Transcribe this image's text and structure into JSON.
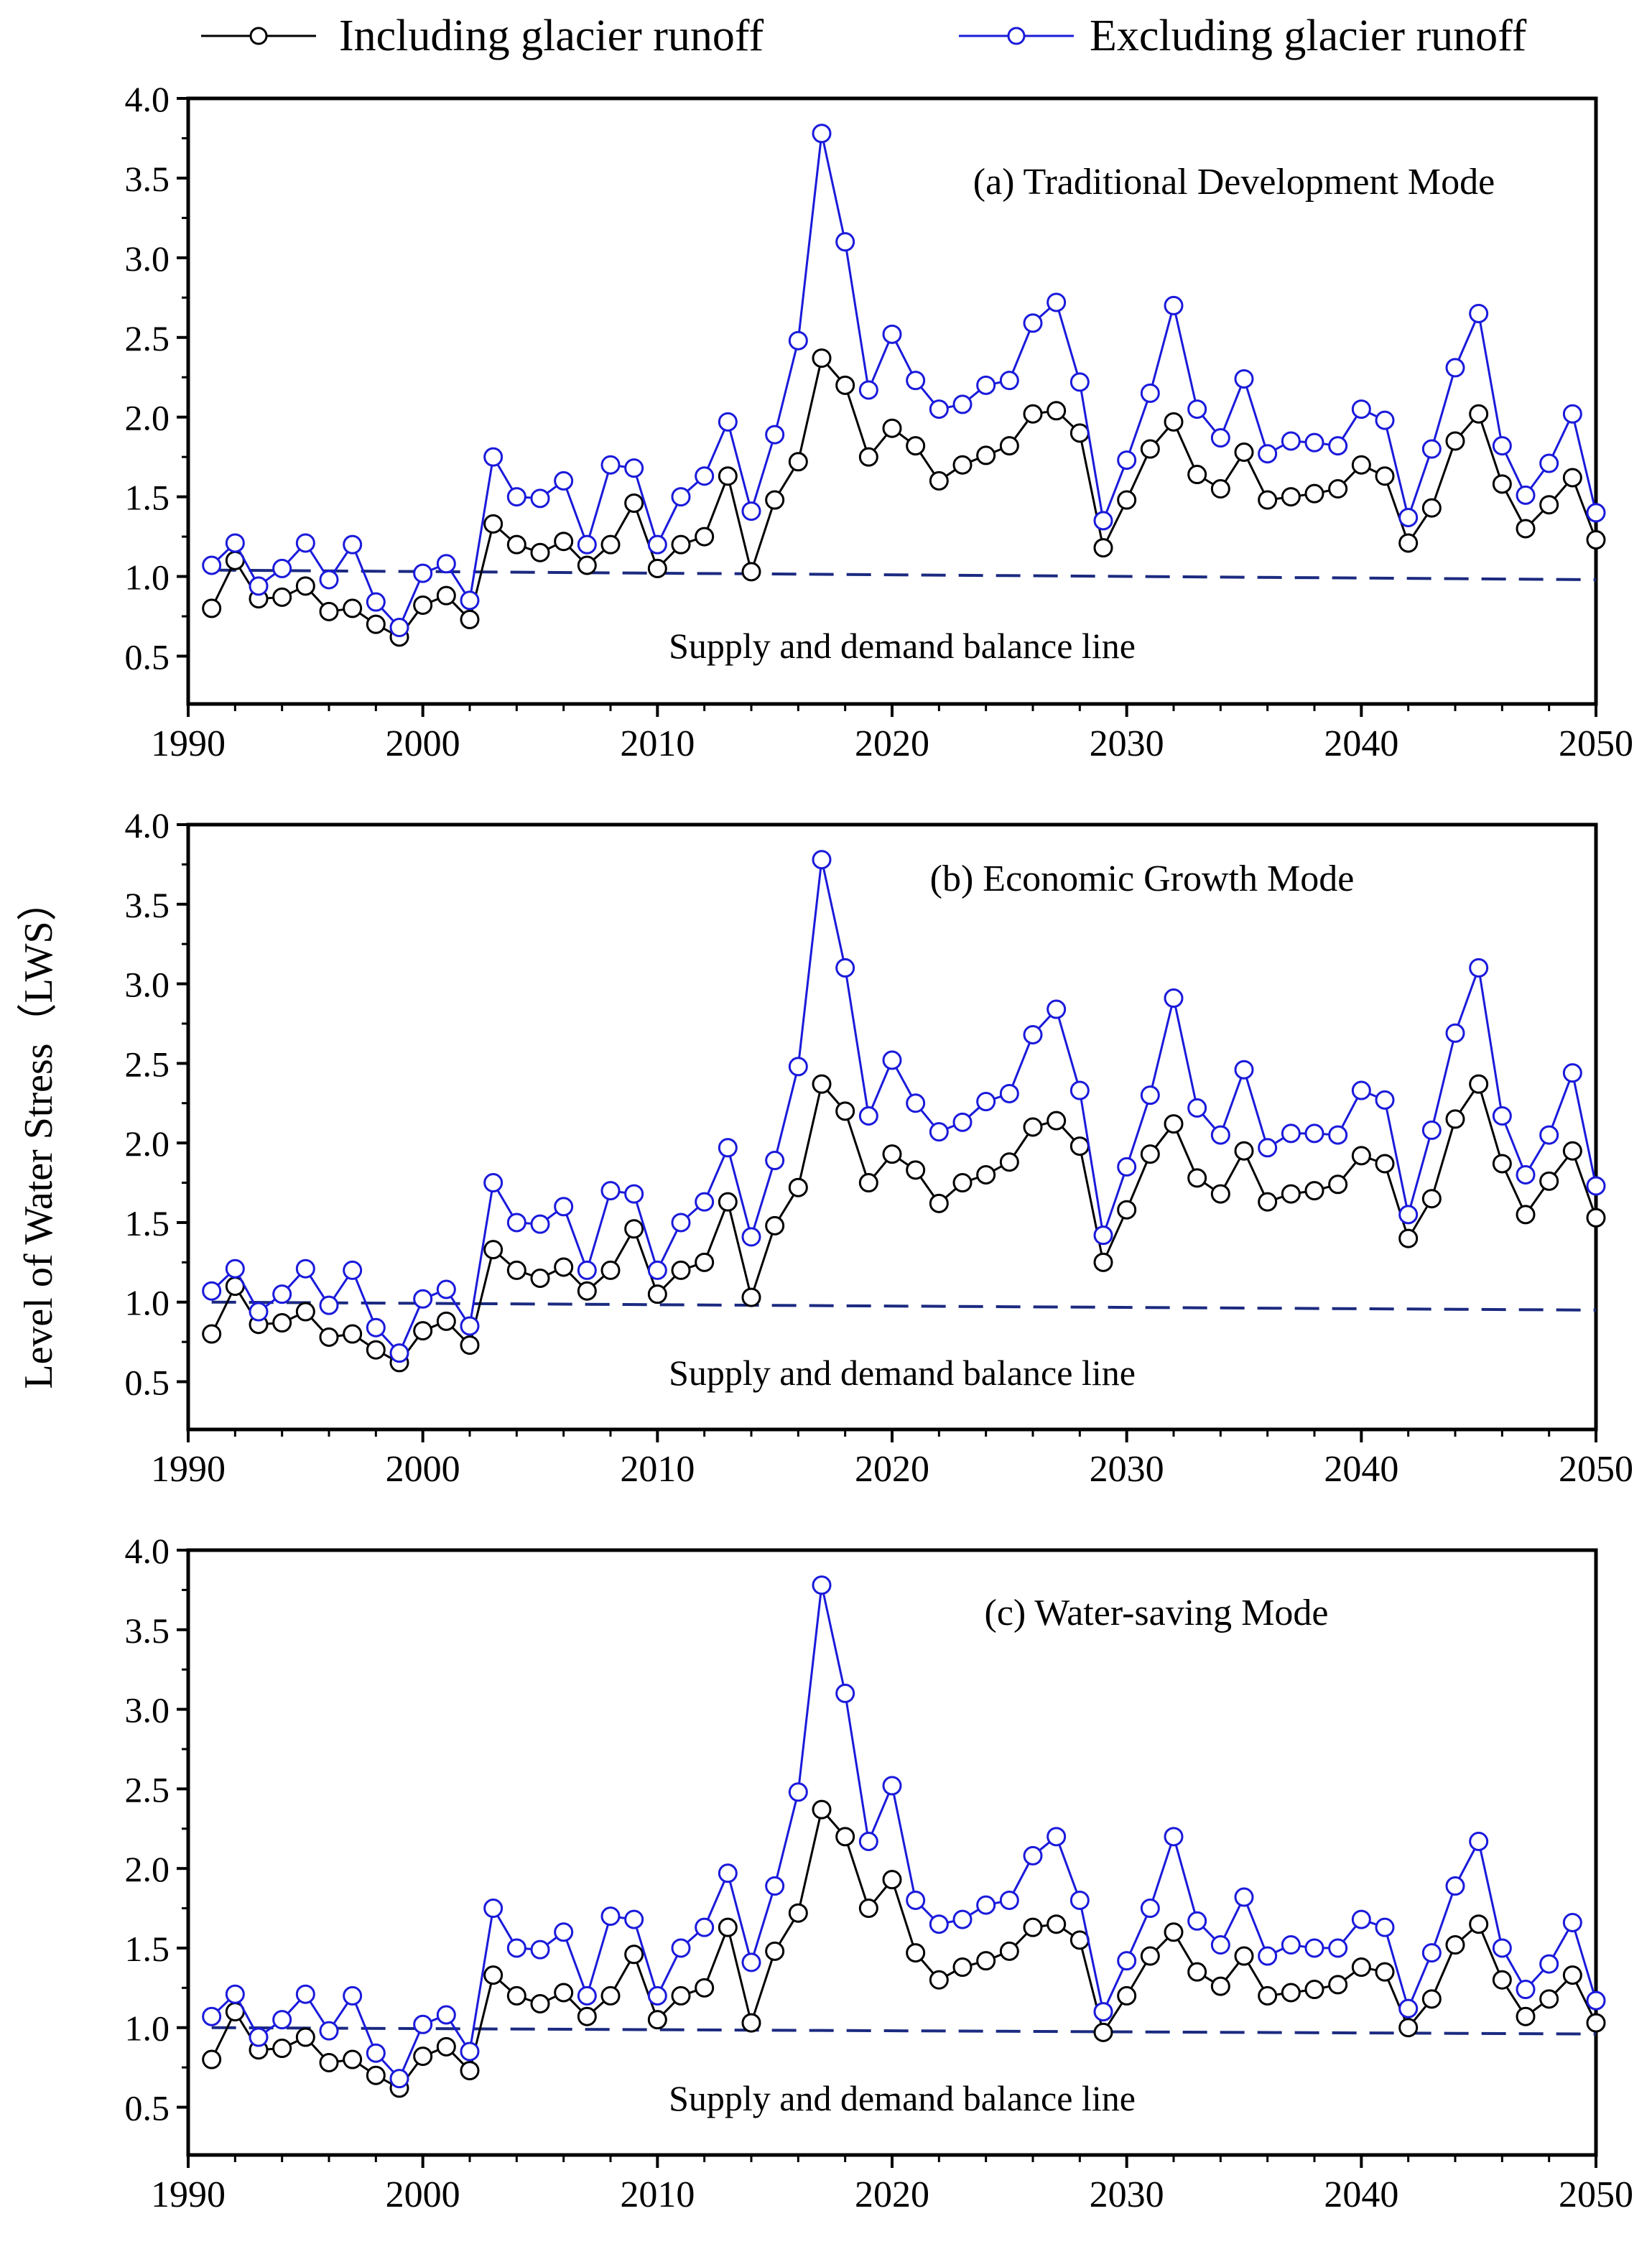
{
  "legend": {
    "including_label": "Including glacier runoff",
    "excluding_label": "Excluding glacier runoff"
  },
  "ylabel": "Level of Water Stress（LWS）",
  "colors": {
    "including": "#000000",
    "excluding": "#1a1adb",
    "balance": "#1b2a80",
    "axis": "#000000",
    "background": "#ffffff"
  },
  "chart_data": [
    {
      "type": "line",
      "title": "(a) Traditional Development Mode",
      "xlabel": "",
      "ylabel": "Level of Water Stress（LWS）",
      "xlim": [
        1990,
        2050
      ],
      "ylim": [
        0.2,
        4.0
      ],
      "xticks": [
        1990,
        2000,
        2010,
        2020,
        2030,
        2040,
        2050
      ],
      "yticks": [
        0.5,
        1.0,
        1.5,
        2.0,
        2.5,
        3.0,
        3.5,
        4.0
      ],
      "x": [
        1991,
        1992,
        1993,
        1994,
        1995,
        1996,
        1997,
        1998,
        1999,
        2000,
        2001,
        2002,
        2003,
        2004,
        2005,
        2006,
        2007,
        2008,
        2009,
        2010,
        2011,
        2012,
        2013,
        2014,
        2015,
        2016,
        2017,
        2018,
        2019,
        2020,
        2021,
        2022,
        2023,
        2024,
        2025,
        2026,
        2027,
        2028,
        2029,
        2030,
        2031,
        2032,
        2033,
        2034,
        2035,
        2036,
        2037,
        2038,
        2039,
        2040,
        2041,
        2042,
        2043,
        2044,
        2045,
        2046,
        2047,
        2048,
        2049,
        2050
      ],
      "series": [
        {
          "name": "Including glacier runoff",
          "values": [
            0.8,
            1.1,
            0.86,
            0.87,
            0.94,
            0.78,
            0.8,
            0.7,
            0.62,
            0.82,
            0.88,
            0.73,
            1.33,
            1.2,
            1.15,
            1.22,
            1.07,
            1.2,
            1.46,
            1.05,
            1.2,
            1.25,
            1.63,
            1.03,
            1.48,
            1.72,
            2.37,
            2.2,
            1.75,
            1.93,
            1.82,
            1.6,
            1.7,
            1.76,
            1.82,
            2.02,
            2.04,
            1.9,
            1.18,
            1.48,
            1.8,
            1.97,
            1.64,
            1.55,
            1.78,
            1.48,
            1.5,
            1.52,
            1.55,
            1.7,
            1.63,
            1.21,
            1.43,
            1.85,
            2.02,
            1.58,
            1.3,
            1.45,
            1.62,
            1.23
          ]
        },
        {
          "name": "Excluding glacier runoff",
          "values": [
            1.07,
            1.21,
            0.94,
            1.05,
            1.21,
            0.98,
            1.2,
            0.84,
            0.68,
            1.02,
            1.08,
            0.85,
            1.75,
            1.5,
            1.49,
            1.6,
            1.2,
            1.7,
            1.68,
            1.2,
            1.5,
            1.63,
            1.97,
            1.41,
            1.89,
            2.48,
            3.78,
            3.1,
            2.17,
            2.52,
            2.23,
            2.05,
            2.08,
            2.2,
            2.23,
            2.59,
            2.72,
            2.22,
            1.35,
            1.73,
            2.15,
            2.7,
            2.05,
            1.87,
            2.24,
            1.77,
            1.85,
            1.84,
            1.82,
            2.05,
            1.98,
            1.37,
            1.8,
            2.31,
            2.65,
            1.82,
            1.51,
            1.71,
            2.02,
            1.4
          ]
        }
      ],
      "balance_line": {
        "label": "Supply and demand balance line",
        "x": [
          1991,
          2050
        ],
        "values": [
          1.04,
          0.98
        ]
      }
    },
    {
      "type": "line",
      "title": "(b)  Economic Growth Mode",
      "xlabel": "",
      "ylabel": "Level of Water Stress（LWS）",
      "xlim": [
        1990,
        2050
      ],
      "ylim": [
        0.2,
        4.0
      ],
      "xticks": [
        1990,
        2000,
        2010,
        2020,
        2030,
        2040,
        2050
      ],
      "yticks": [
        0.5,
        1.0,
        1.5,
        2.0,
        2.5,
        3.0,
        3.5,
        4.0
      ],
      "x": [
        1991,
        1992,
        1993,
        1994,
        1995,
        1996,
        1997,
        1998,
        1999,
        2000,
        2001,
        2002,
        2003,
        2004,
        2005,
        2006,
        2007,
        2008,
        2009,
        2010,
        2011,
        2012,
        2013,
        2014,
        2015,
        2016,
        2017,
        2018,
        2019,
        2020,
        2021,
        2022,
        2023,
        2024,
        2025,
        2026,
        2027,
        2028,
        2029,
        2030,
        2031,
        2032,
        2033,
        2034,
        2035,
        2036,
        2037,
        2038,
        2039,
        2040,
        2041,
        2042,
        2043,
        2044,
        2045,
        2046,
        2047,
        2048,
        2049,
        2050
      ],
      "series": [
        {
          "name": "Including glacier runoff",
          "values": [
            0.8,
            1.1,
            0.86,
            0.87,
            0.94,
            0.78,
            0.8,
            0.7,
            0.62,
            0.82,
            0.88,
            0.73,
            1.33,
            1.2,
            1.15,
            1.22,
            1.07,
            1.2,
            1.46,
            1.05,
            1.2,
            1.25,
            1.63,
            1.03,
            1.48,
            1.72,
            2.37,
            2.2,
            1.75,
            1.93,
            1.83,
            1.62,
            1.75,
            1.8,
            1.88,
            2.1,
            2.14,
            1.98,
            1.25,
            1.58,
            1.93,
            2.12,
            1.78,
            1.68,
            1.95,
            1.63,
            1.68,
            1.7,
            1.74,
            1.92,
            1.87,
            1.4,
            1.65,
            2.15,
            2.37,
            1.87,
            1.55,
            1.76,
            1.95,
            1.53
          ]
        },
        {
          "name": "Excluding glacier runoff",
          "values": [
            1.07,
            1.21,
            0.94,
            1.05,
            1.21,
            0.98,
            1.2,
            0.84,
            0.68,
            1.02,
            1.08,
            0.85,
            1.75,
            1.5,
            1.49,
            1.6,
            1.2,
            1.7,
            1.68,
            1.2,
            1.5,
            1.63,
            1.97,
            1.41,
            1.89,
            2.48,
            3.78,
            3.1,
            2.17,
            2.52,
            2.25,
            2.07,
            2.13,
            2.26,
            2.31,
            2.68,
            2.84,
            2.33,
            1.42,
            1.85,
            2.3,
            2.91,
            2.22,
            2.05,
            2.46,
            1.97,
            2.06,
            2.06,
            2.05,
            2.33,
            2.27,
            1.55,
            2.08,
            2.69,
            3.1,
            2.17,
            1.8,
            2.05,
            2.44,
            1.73
          ]
        }
      ],
      "balance_line": {
        "label": "Supply and demand balance line",
        "x": [
          1991,
          2050
        ],
        "values": [
          1.0,
          0.95
        ]
      }
    },
    {
      "type": "line",
      "title": "(c) Water-saving Mode",
      "xlabel": "",
      "ylabel": "Level of Water Stress（LWS）",
      "xlim": [
        1990,
        2050
      ],
      "ylim": [
        0.2,
        4.0
      ],
      "xticks": [
        1990,
        2000,
        2010,
        2020,
        2030,
        2040,
        2050
      ],
      "yticks": [
        0.5,
        1.0,
        1.5,
        2.0,
        2.5,
        3.0,
        3.5,
        4.0
      ],
      "x": [
        1991,
        1992,
        1993,
        1994,
        1995,
        1996,
        1997,
        1998,
        1999,
        2000,
        2001,
        2002,
        2003,
        2004,
        2005,
        2006,
        2007,
        2008,
        2009,
        2010,
        2011,
        2012,
        2013,
        2014,
        2015,
        2016,
        2017,
        2018,
        2019,
        2020,
        2021,
        2022,
        2023,
        2024,
        2025,
        2026,
        2027,
        2028,
        2029,
        2030,
        2031,
        2032,
        2033,
        2034,
        2035,
        2036,
        2037,
        2038,
        2039,
        2040,
        2041,
        2042,
        2043,
        2044,
        2045,
        2046,
        2047,
        2048,
        2049,
        2050
      ],
      "series": [
        {
          "name": "Including glacier runoff",
          "values": [
            0.8,
            1.1,
            0.86,
            0.87,
            0.94,
            0.78,
            0.8,
            0.7,
            0.62,
            0.82,
            0.88,
            0.73,
            1.33,
            1.2,
            1.15,
            1.22,
            1.07,
            1.2,
            1.46,
            1.05,
            1.2,
            1.25,
            1.63,
            1.03,
            1.48,
            1.72,
            2.37,
            2.2,
            1.75,
            1.93,
            1.47,
            1.3,
            1.38,
            1.42,
            1.48,
            1.63,
            1.65,
            1.55,
            0.97,
            1.2,
            1.45,
            1.6,
            1.35,
            1.26,
            1.45,
            1.2,
            1.22,
            1.24,
            1.27,
            1.38,
            1.35,
            1.0,
            1.18,
            1.52,
            1.65,
            1.3,
            1.07,
            1.18,
            1.33,
            1.03
          ]
        },
        {
          "name": "Excluding glacier runoff",
          "values": [
            1.07,
            1.21,
            0.94,
            1.05,
            1.21,
            0.98,
            1.2,
            0.84,
            0.68,
            1.02,
            1.08,
            0.85,
            1.75,
            1.5,
            1.49,
            1.6,
            1.2,
            1.7,
            1.68,
            1.2,
            1.5,
            1.63,
            1.97,
            1.41,
            1.89,
            2.48,
            3.78,
            3.1,
            2.17,
            2.52,
            1.8,
            1.65,
            1.68,
            1.77,
            1.8,
            2.08,
            2.2,
            1.8,
            1.1,
            1.42,
            1.75,
            2.2,
            1.67,
            1.52,
            1.82,
            1.45,
            1.52,
            1.5,
            1.5,
            1.68,
            1.63,
            1.12,
            1.47,
            1.89,
            2.17,
            1.5,
            1.24,
            1.4,
            1.66,
            1.17
          ]
        }
      ],
      "balance_line": {
        "label": "Supply and demand balance line",
        "x": [
          1991,
          2050
        ],
        "values": [
          1.0,
          0.96
        ]
      }
    }
  ]
}
